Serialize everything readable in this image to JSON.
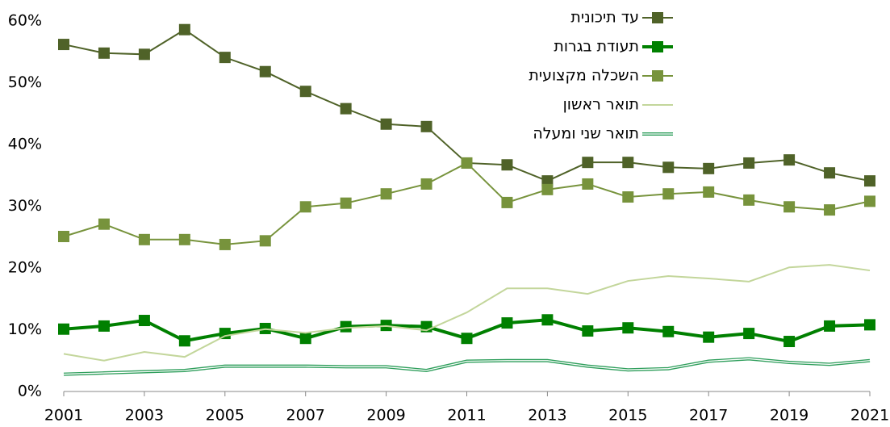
{
  "chart_data": {
    "type": "line",
    "x": [
      2001,
      2002,
      2003,
      2004,
      2005,
      2006,
      2007,
      2008,
      2009,
      2010,
      2011,
      2012,
      2013,
      2014,
      2015,
      2016,
      2017,
      2018,
      2019,
      2020,
      2021
    ],
    "xlim": [
      2001,
      2021
    ],
    "xticks": [
      2001,
      2003,
      2005,
      2007,
      2009,
      2011,
      2013,
      2015,
      2017,
      2019,
      2021
    ],
    "ylim": [
      0,
      60
    ],
    "yticks": [
      {
        "value": 0,
        "label": "0%"
      },
      {
        "value": 10,
        "label": "10%"
      },
      {
        "value": 20,
        "label": "20%"
      },
      {
        "value": 30,
        "label": "30%"
      },
      {
        "value": 40,
        "label": "40%"
      },
      {
        "value": 50,
        "label": "50%"
      },
      {
        "value": 60,
        "label": "60%"
      }
    ],
    "grid": false,
    "legend": "top-right",
    "series": [
      {
        "name": "עד תיכונית",
        "color": "#4f6228",
        "marker": "square",
        "line_width": 2,
        "style": "solid",
        "values": [
          56.2,
          54.8,
          54.6,
          58.6,
          54.1,
          51.8,
          48.6,
          45.8,
          43.3,
          42.9,
          37.0,
          36.7,
          34.1,
          37.1,
          37.1,
          36.3,
          36.1,
          37.0,
          37.5,
          35.4,
          34.1
        ]
      },
      {
        "name": "תעודת בגרות",
        "color": "#008000",
        "marker": "square",
        "line_width": 4,
        "style": "solid",
        "values": [
          10.1,
          10.6,
          11.5,
          8.2,
          9.4,
          10.2,
          8.6,
          10.5,
          10.7,
          10.5,
          8.6,
          11.1,
          11.6,
          9.8,
          10.3,
          9.7,
          8.8,
          9.4,
          8.1,
          10.6,
          10.8
        ]
      },
      {
        "name": "השכלה מקצועית",
        "color": "#77933c",
        "marker": "square",
        "line_width": 2,
        "style": "solid",
        "values": [
          25.1,
          27.1,
          24.6,
          24.6,
          23.8,
          24.4,
          29.9,
          30.5,
          32.0,
          33.6,
          37.0,
          30.6,
          32.7,
          33.6,
          31.5,
          32.0,
          32.3,
          31.0,
          29.9,
          29.4,
          30.8
        ]
      },
      {
        "name": "תואר ראשון",
        "color": "#c3d69b",
        "marker": "none",
        "line_width": 2,
        "style": "solid",
        "values": [
          6.1,
          5.0,
          6.4,
          5.6,
          9.0,
          10.1,
          9.5,
          10.3,
          10.6,
          9.9,
          12.8,
          16.7,
          16.7,
          15.8,
          17.9,
          18.7,
          18.3,
          17.8,
          20.1,
          20.5,
          19.6
        ]
      },
      {
        "name": "תואר שני ומעלה",
        "color": "#2e9e5b",
        "marker": "none",
        "line_width": 4,
        "style": "double",
        "values": [
          2.8,
          3.0,
          3.2,
          3.4,
          4.1,
          4.1,
          4.1,
          4.0,
          4.0,
          3.4,
          4.9,
          5.0,
          5.0,
          4.1,
          3.5,
          3.7,
          4.9,
          5.3,
          4.7,
          4.4,
          5.0
        ]
      }
    ]
  }
}
